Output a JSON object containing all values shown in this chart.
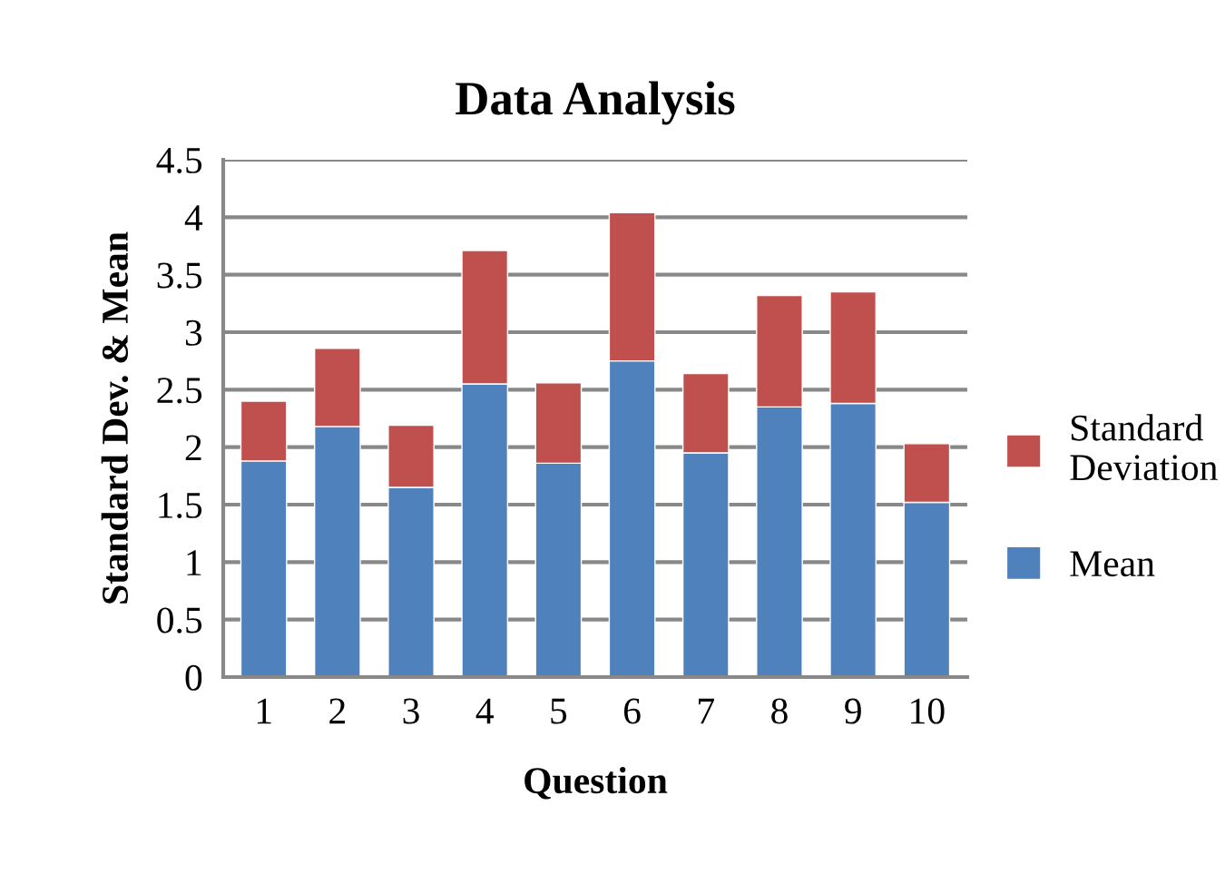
{
  "chart_data": {
    "type": "bar",
    "title": "Data Analysis",
    "xlabel": "Question",
    "ylabel": "Standard Dev. & Mean",
    "categories": [
      "1",
      "2",
      "3",
      "4",
      "5",
      "6",
      "7",
      "8",
      "9",
      "10"
    ],
    "stacked": true,
    "series": [
      {
        "name": "Mean",
        "color": "#4f81bd",
        "values": [
          1.88,
          2.18,
          1.65,
          2.55,
          1.86,
          2.75,
          1.95,
          2.35,
          2.38,
          1.52
        ]
      },
      {
        "name": "Standard Deviation",
        "color": "#c0504d",
        "values": [
          0.52,
          0.68,
          0.54,
          1.16,
          0.7,
          1.29,
          0.69,
          0.97,
          0.97,
          0.51
        ]
      }
    ],
    "ylim": [
      0,
      4.5
    ],
    "yticks": [
      0,
      0.5,
      1,
      1.5,
      2,
      2.5,
      3,
      3.5,
      4,
      4.5
    ],
    "grid": "y",
    "legend": "right"
  }
}
